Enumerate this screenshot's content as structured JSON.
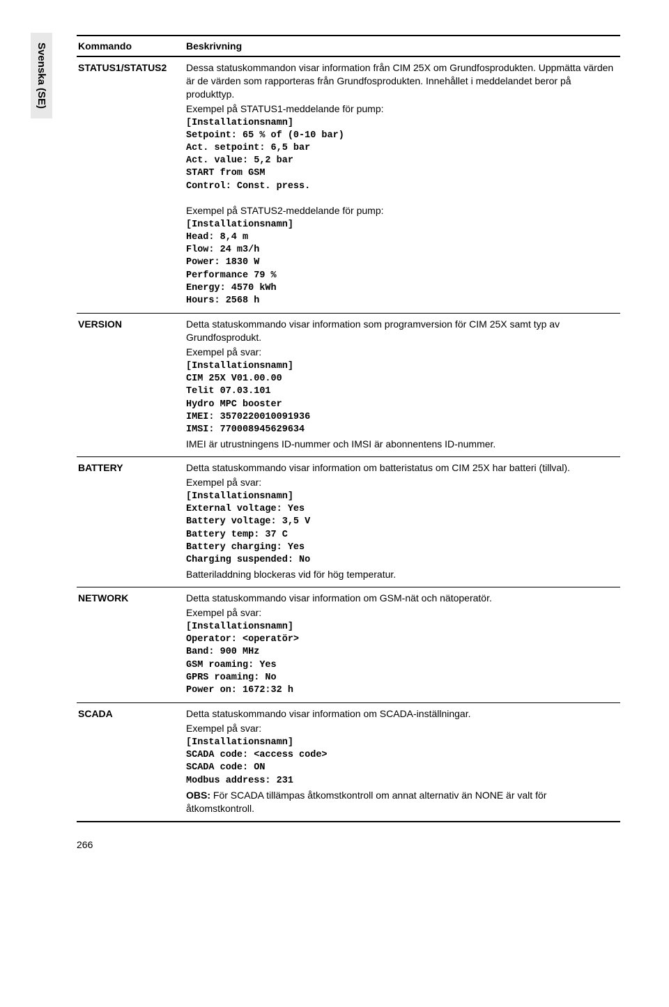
{
  "tab": "Svenska (SE)",
  "header": {
    "col1": "Kommando",
    "col2": "Beskrivning"
  },
  "rows": {
    "status": {
      "cmd": "STATUS1/STATUS2",
      "intro1": "Dessa statuskommandon visar information från CIM 25X om Grundfosprodukten. Uppmätta värden är de värden som rapporteras från Grundfosprodukten. Innehållet i meddelandet beror på produkttyp.",
      "ex1label": "Exempel på STATUS1-meddelande för pump:",
      "mono1": "[Installationsnamn]\nSetpoint: 65 % of (0-10 bar)\nAct. setpoint: 6,5 bar\nAct. value: 5,2 bar\nSTART from GSM\nControl: Const. press.",
      "ex2label": "Exempel på STATUS2-meddelande för pump:",
      "mono2": "[Installationsnamn]\nHead: 8,4 m\nFlow: 24 m3/h\nPower: 1830 W\nPerformance 79 %\nEnergy: 4570 kWh\nHours: 2568 h"
    },
    "version": {
      "cmd": "VERSION",
      "intro": "Detta statuskommando visar information som programversion för CIM 25X samt typ av Grundfosprodukt.",
      "exlabel": "Exempel på svar:",
      "mono": "[Installationsnamn]\nCIM 25X V01.00.00\nTelit 07.03.101\nHydro MPC booster\nIMEI: 3570220010091936\nIMSI: 770008945629634",
      "note": "IMEI är utrustningens ID-nummer och IMSI är abonnentens ID-nummer."
    },
    "battery": {
      "cmd": "BATTERY",
      "intro": "Detta statuskommando visar information om batteristatus om CIM 25X har batteri (tillval).",
      "exlabel": "Exempel på svar:",
      "mono": "[Installationsnamn]\nExternal voltage: Yes\nBattery voltage: 3,5 V\nBattery temp: 37 C\nBattery charging: Yes\nCharging suspended: No",
      "note": "Batteriladdning blockeras vid för hög temperatur."
    },
    "network": {
      "cmd": "NETWORK",
      "intro": "Detta statuskommando visar information om GSM-nät och nätoperatör.",
      "exlabel": "Exempel på svar:",
      "mono": "[Installationsnamn]\nOperator: <operatör>\nBand: 900 MHz\nGSM roaming: Yes\nGPRS roaming: No\nPower on: 1672:32 h"
    },
    "scada": {
      "cmd": "SCADA",
      "intro": "Detta statuskommando visar information om SCADA-inställningar.",
      "exlabel": "Exempel på svar:",
      "mono": "[Installationsnamn]\nSCADA code: <access code>\nSCADA code: ON\nModbus address: 231",
      "obs_label": "OBS:",
      "obs_text": " För SCADA tillämpas åtkomstkontroll om annat alternativ än NONE är valt för åtkomstkontroll."
    }
  },
  "page_number": "266"
}
